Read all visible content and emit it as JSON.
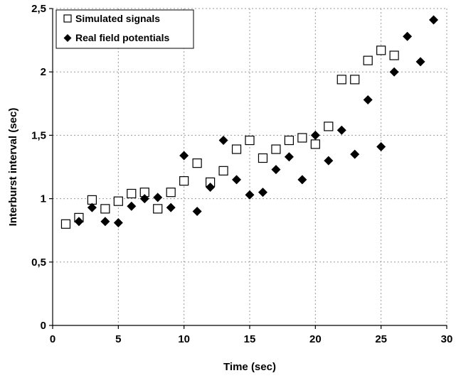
{
  "chart_data": {
    "type": "scatter",
    "title": "",
    "xlabel": "Time (sec)",
    "ylabel": "Interburst interval (sec)",
    "xlim": [
      0,
      30
    ],
    "ylim": [
      0,
      2.5
    ],
    "x_ticks": [
      0,
      5,
      10,
      15,
      20,
      25,
      30
    ],
    "x_tick_labels": [
      "0",
      "5",
      "10",
      "15",
      "20",
      "25",
      "30"
    ],
    "y_ticks": [
      0,
      0.5,
      1,
      1.5,
      2,
      2.5
    ],
    "y_tick_labels": [
      "0",
      "0,5",
      "1",
      "1,5",
      "2",
      "2,5"
    ],
    "grid": "dotted, both axes",
    "legend_position": "top-left",
    "series": [
      {
        "name": "Simulated signals",
        "marker": "open-square",
        "color": "#000000",
        "x": [
          1,
          2,
          3,
          4,
          5,
          6,
          7,
          8,
          9,
          10,
          11,
          12,
          13,
          14,
          15,
          16,
          17,
          18,
          19,
          20,
          21,
          22,
          23,
          24,
          25,
          26
        ],
        "y": [
          0.8,
          0.85,
          0.99,
          0.92,
          0.98,
          1.04,
          1.05,
          0.92,
          1.05,
          1.14,
          1.28,
          1.13,
          1.22,
          1.39,
          1.46,
          1.32,
          1.39,
          1.46,
          1.48,
          1.43,
          1.57,
          1.94,
          1.94,
          2.09,
          2.17,
          2.13
        ]
      },
      {
        "name": "Real field potentials",
        "marker": "filled-diamond",
        "color": "#000000",
        "x": [
          2,
          3,
          4,
          5,
          6,
          7,
          8,
          9,
          10,
          11,
          12,
          13,
          14,
          15,
          16,
          17,
          18,
          19,
          20,
          21,
          22,
          23,
          24,
          25,
          26,
          27,
          28,
          29
        ],
        "y": [
          0.82,
          0.93,
          0.82,
          0.81,
          0.94,
          1.0,
          1.01,
          0.93,
          1.34,
          0.9,
          1.09,
          1.46,
          1.15,
          1.03,
          1.05,
          1.23,
          1.33,
          1.15,
          1.5,
          1.3,
          1.54,
          1.35,
          1.78,
          1.41,
          2.0,
          2.28,
          2.08,
          2.41
        ]
      }
    ]
  }
}
